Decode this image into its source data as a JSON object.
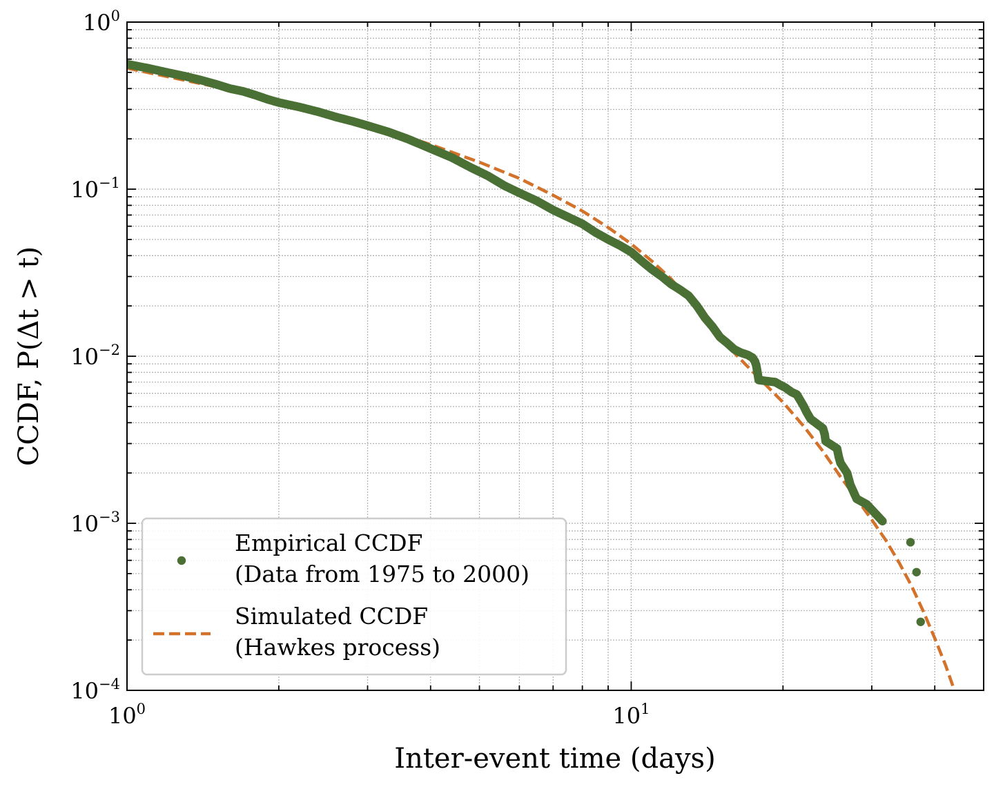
{
  "chart_data": {
    "type": "scatter",
    "title": "",
    "xlabel": "Inter-event time (days)",
    "ylabel": "CCDF, P(Δt > t)",
    "xscale": "log",
    "yscale": "log",
    "xlim": [
      1,
      50
    ],
    "ylim": [
      0.0001,
      1
    ],
    "grid": true,
    "legend_position": "lower-left",
    "x_ticks": [
      {
        "value": 1,
        "base": "10",
        "exp": "0"
      },
      {
        "value": 10,
        "base": "10",
        "exp": "1"
      }
    ],
    "y_ticks": [
      {
        "value": 1,
        "base": "10",
        "exp": "0"
      },
      {
        "value": 0.1,
        "base": "10",
        "exp": "−1"
      },
      {
        "value": 0.01,
        "base": "10",
        "exp": "−2"
      },
      {
        "value": 0.001,
        "base": "10",
        "exp": "−3"
      },
      {
        "value": 0.0001,
        "base": "10",
        "exp": "−4"
      }
    ],
    "series": [
      {
        "name": "Empirical CCDF (Data from 1975 to 2000)",
        "legend_lines": [
          "Empirical CCDF",
          "(Data from 1975 to 2000)"
        ],
        "kind": "scatter",
        "color": "#4a7035",
        "points": [
          [
            1.0,
            0.56
          ],
          [
            1.1,
            0.53
          ],
          [
            1.2,
            0.5
          ],
          [
            1.3,
            0.475
          ],
          [
            1.4,
            0.45
          ],
          [
            1.5,
            0.425
          ],
          [
            1.6,
            0.4
          ],
          [
            1.7,
            0.385
          ],
          [
            1.8,
            0.365
          ],
          [
            1.9,
            0.345
          ],
          [
            2.0,
            0.33
          ],
          [
            2.2,
            0.31
          ],
          [
            2.4,
            0.29
          ],
          [
            2.6,
            0.27
          ],
          [
            2.8,
            0.255
          ],
          [
            3.0,
            0.24
          ],
          [
            3.3,
            0.22
          ],
          [
            3.6,
            0.2
          ],
          [
            4.0,
            0.175
          ],
          [
            4.4,
            0.155
          ],
          [
            4.8,
            0.135
          ],
          [
            5.2,
            0.12
          ],
          [
            5.6,
            0.105
          ],
          [
            6.0,
            0.095
          ],
          [
            6.5,
            0.085
          ],
          [
            7.0,
            0.075
          ],
          [
            7.5,
            0.068
          ],
          [
            8.0,
            0.062
          ],
          [
            8.5,
            0.055
          ],
          [
            9.0,
            0.05
          ],
          [
            9.5,
            0.046
          ],
          [
            10.0,
            0.042
          ],
          [
            10.5,
            0.037
          ],
          [
            11.0,
            0.033
          ],
          [
            11.5,
            0.03
          ],
          [
            12.0,
            0.027
          ],
          [
            12.5,
            0.025
          ],
          [
            13.0,
            0.023
          ],
          [
            13.5,
            0.02
          ],
          [
            14.0,
            0.017
          ],
          [
            14.5,
            0.015
          ],
          [
            15.0,
            0.013
          ],
          [
            15.5,
            0.012
          ],
          [
            16.0,
            0.011
          ],
          [
            16.5,
            0.0105
          ],
          [
            17.0,
            0.0102
          ],
          [
            17.4,
            0.0098
          ],
          [
            17.6,
            0.0093
          ],
          [
            17.7,
            0.0088
          ],
          [
            17.8,
            0.008
          ],
          [
            17.9,
            0.0072
          ],
          [
            19.3,
            0.007
          ],
          [
            19.8,
            0.0067
          ],
          [
            20.2,
            0.0065
          ],
          [
            20.8,
            0.0061
          ],
          [
            21.3,
            0.0059
          ],
          [
            21.6,
            0.0055
          ],
          [
            22.0,
            0.005
          ],
          [
            22.3,
            0.0046
          ],
          [
            22.7,
            0.0042
          ],
          [
            23.2,
            0.004
          ],
          [
            24.0,
            0.0037
          ],
          [
            24.2,
            0.0034
          ],
          [
            24.3,
            0.0031
          ],
          [
            25.6,
            0.0028
          ],
          [
            25.8,
            0.0025
          ],
          [
            26.0,
            0.0023
          ],
          [
            26.8,
            0.002
          ],
          [
            27.2,
            0.0017
          ],
          [
            28.0,
            0.0014
          ],
          [
            29.3,
            0.0013
          ],
          [
            31.5,
            0.00103
          ],
          [
            35.8,
            0.00077
          ],
          [
            36.8,
            0.00051
          ],
          [
            37.5,
            0.000257
          ]
        ]
      },
      {
        "name": "Simulated CCDF (Hawkes process)",
        "legend_lines": [
          "Simulated CCDF",
          "(Hawkes process)"
        ],
        "kind": "line",
        "style": "dashed",
        "color": "#d2722b",
        "points": [
          [
            1.0,
            0.53
          ],
          [
            1.5,
            0.41
          ],
          [
            2.0,
            0.335
          ],
          [
            3.0,
            0.245
          ],
          [
            4.0,
            0.185
          ],
          [
            5.0,
            0.145
          ],
          [
            6.0,
            0.116
          ],
          [
            7.0,
            0.092
          ],
          [
            8.0,
            0.074
          ],
          [
            9.0,
            0.059
          ],
          [
            10.0,
            0.047
          ],
          [
            11.0,
            0.037
          ],
          [
            12.0,
            0.029
          ],
          [
            13.0,
            0.022
          ],
          [
            14.0,
            0.017
          ],
          [
            15.0,
            0.0135
          ],
          [
            16.0,
            0.0105
          ],
          [
            17.0,
            0.0087
          ],
          [
            18.0,
            0.0073
          ],
          [
            19.0,
            0.0062
          ],
          [
            20.0,
            0.0053
          ],
          [
            22.0,
            0.0038
          ],
          [
            24.0,
            0.0027
          ],
          [
            26.0,
            0.0019
          ],
          [
            28.0,
            0.0014
          ],
          [
            30.0,
            0.00105
          ],
          [
            32.0,
            0.00079
          ],
          [
            34.0,
            0.00058
          ],
          [
            36.0,
            0.00042
          ],
          [
            38.0,
            0.000295
          ],
          [
            40.0,
            0.000205
          ],
          [
            42.0,
            0.000142
          ],
          [
            43.5,
            0.000105
          ]
        ]
      }
    ]
  }
}
